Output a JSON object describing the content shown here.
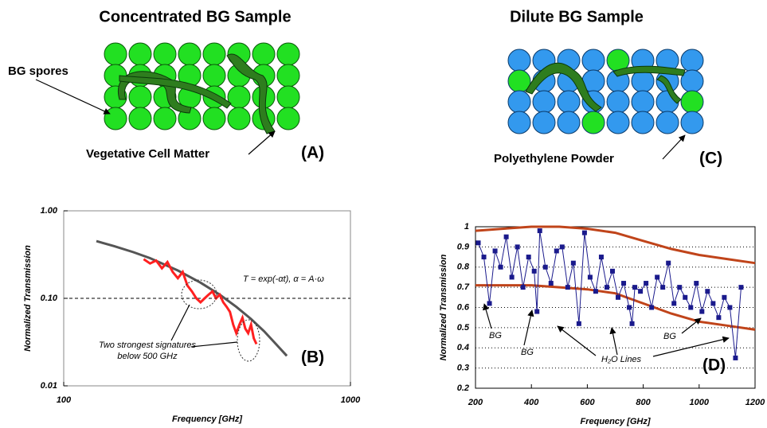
{
  "diagrams": [
    {
      "title": "Concentrated BG Sample",
      "labels": [
        "BG spores",
        "Vegetative Cell Matter"
      ],
      "panel": "(A)"
    },
    {
      "title": "Dilute BG Sample",
      "labels": [
        "Polyethylene Powder"
      ],
      "panel": "(C)"
    }
  ],
  "chart_data": [
    {
      "type": "line",
      "x_label": "Frequency [GHz]",
      "y_label": "Normalized Transmission",
      "xlog": true,
      "ylog": true,
      "xlim": [
        100,
        1000
      ],
      "ylim": [
        0.01,
        1
      ],
      "xticks": [
        100,
        1000
      ],
      "yticks": [
        {
          "value": 1,
          "label": "1.00"
        },
        {
          "value": 0.1,
          "label": "0.10"
        },
        0.01
      ],
      "hline": 0.1,
      "annotations": [
        "T = exp(-αt), α = A·ω",
        "Two strongest signatures",
        "below 500 GHz",
        "(B)"
      ],
      "series": [
        {
          "color": "#555555",
          "x": [
            130,
            150,
            175,
            200,
            250,
            300,
            350,
            400,
            450,
            500,
            550,
            600
          ],
          "values": [
            0.45,
            0.395,
            0.337,
            0.288,
            0.208,
            0.151,
            0.11,
            0.08,
            0.058,
            0.042,
            0.03,
            0.022
          ]
        },
        {
          "color": "#ff2020",
          "x": [
            190,
            200,
            210,
            220,
            230,
            240,
            250,
            260,
            270,
            280,
            290,
            300,
            310,
            320,
            330,
            340,
            350,
            360,
            370,
            380,
            390,
            400,
            410,
            420,
            430,
            440,
            450,
            460,
            470
          ],
          "values": [
            0.28,
            0.25,
            0.27,
            0.22,
            0.26,
            0.2,
            0.17,
            0.2,
            0.14,
            0.12,
            0.1,
            0.09,
            0.1,
            0.11,
            0.12,
            0.1,
            0.11,
            0.09,
            0.08,
            0.07,
            0.05,
            0.04,
            0.05,
            0.06,
            0.045,
            0.04,
            0.05,
            0.035,
            0.03
          ]
        }
      ]
    },
    {
      "type": "line",
      "x_label": "Frequency [GHz]",
      "y_label": "Normalized Transmission",
      "xlim": [
        200,
        1200
      ],
      "ylim": [
        0.2,
        1
      ],
      "xticks": [
        200,
        400,
        600,
        800,
        1000,
        1200
      ],
      "yticks": [
        0.2,
        0.3,
        0.4,
        0.5,
        0.6,
        0.7,
        0.8,
        0.9,
        1
      ],
      "grid": "dotted",
      "annotations": [
        "BG",
        "BG",
        "BG",
        "H₂O Lines",
        "(D)"
      ],
      "series": [
        {
          "color": "#c0441a",
          "x": [
            200,
            300,
            400,
            500,
            600,
            700,
            800,
            900,
            1000,
            1100,
            1200
          ],
          "values": [
            0.98,
            0.99,
            1.0,
            1.0,
            0.99,
            0.97,
            0.93,
            0.89,
            0.86,
            0.84,
            0.82
          ]
        },
        {
          "color": "#c0441a",
          "x": [
            200,
            300,
            400,
            500,
            600,
            700,
            800,
            900,
            1000,
            1100,
            1200
          ],
          "values": [
            0.71,
            0.71,
            0.71,
            0.7,
            0.69,
            0.67,
            0.62,
            0.57,
            0.53,
            0.51,
            0.49
          ]
        },
        {
          "color": "#1a1a8c",
          "marker": "square",
          "x": [
            210,
            230,
            250,
            270,
            290,
            310,
            330,
            350,
            370,
            390,
            410,
            420,
            430,
            450,
            470,
            490,
            510,
            530,
            550,
            570,
            590,
            610,
            630,
            650,
            670,
            690,
            710,
            730,
            750,
            760,
            770,
            790,
            810,
            830,
            850,
            870,
            890,
            910,
            930,
            950,
            970,
            990,
            1010,
            1030,
            1050,
            1070,
            1090,
            1110,
            1130,
            1150
          ],
          "values": [
            0.92,
            0.85,
            0.62,
            0.88,
            0.8,
            0.95,
            0.75,
            0.9,
            0.7,
            0.85,
            0.78,
            0.58,
            0.98,
            0.8,
            0.72,
            0.88,
            0.9,
            0.7,
            0.82,
            0.52,
            0.97,
            0.75,
            0.68,
            0.85,
            0.7,
            0.78,
            0.65,
            0.72,
            0.6,
            0.52,
            0.7,
            0.68,
            0.72,
            0.6,
            0.75,
            0.7,
            0.82,
            0.62,
            0.7,
            0.65,
            0.6,
            0.72,
            0.58,
            0.68,
            0.62,
            0.55,
            0.65,
            0.6,
            0.35,
            0.7
          ]
        }
      ]
    }
  ]
}
